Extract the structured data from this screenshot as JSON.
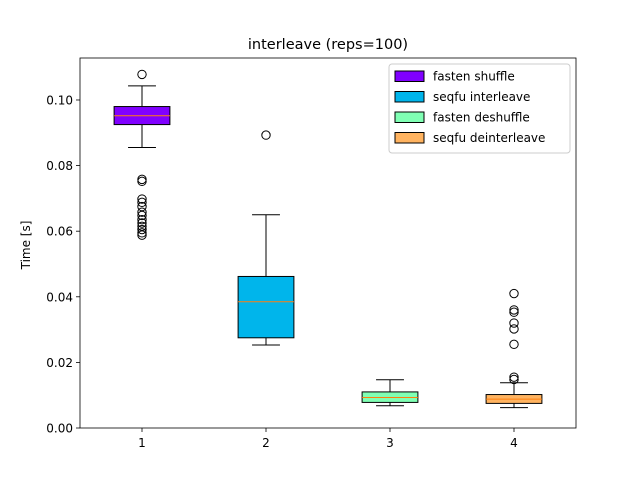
{
  "chart_data": {
    "type": "box",
    "title": "interleave (reps=100)",
    "xlabel": "",
    "ylabel": "Time [s]",
    "categories": [
      "1",
      "2",
      "3",
      "4"
    ],
    "ylim": [
      0,
      0.1128
    ],
    "yticks": [
      "0.00",
      "0.02",
      "0.04",
      "0.06",
      "0.08",
      "0.10"
    ],
    "legend_position": "top-right",
    "grid": false,
    "series": [
      {
        "name": "fasten shuffle",
        "color": "#8000ff",
        "whisker_low": 0.0855,
        "q1": 0.0925,
        "median": 0.0952,
        "q3": 0.098,
        "whisker_high": 0.1043,
        "outliers": [
          0.1078,
          0.0758,
          0.0752,
          0.0698,
          0.0688,
          0.0675,
          0.0658,
          0.0648,
          0.0635,
          0.0625,
          0.0615,
          0.0605,
          0.0595,
          0.0588
        ]
      },
      {
        "name": "seqfu interleave",
        "color": "#00b5eb",
        "whisker_low": 0.0253,
        "q1": 0.0275,
        "median": 0.0385,
        "q3": 0.0462,
        "whisker_high": 0.065,
        "outliers": [
          0.0893
        ]
      },
      {
        "name": "fasten deshuffle",
        "color": "#80ffb4",
        "whisker_low": 0.0068,
        "q1": 0.0078,
        "median": 0.0093,
        "q3": 0.011,
        "whisker_high": 0.0147,
        "outliers": []
      },
      {
        "name": "seqfu deinterleave",
        "color": "#ffb360",
        "whisker_low": 0.0062,
        "q1": 0.0075,
        "median": 0.0088,
        "q3": 0.0102,
        "whisker_high": 0.0138,
        "outliers": [
          0.041,
          0.036,
          0.0353,
          0.032,
          0.0302,
          0.0255,
          0.0155,
          0.0148
        ]
      }
    ]
  }
}
